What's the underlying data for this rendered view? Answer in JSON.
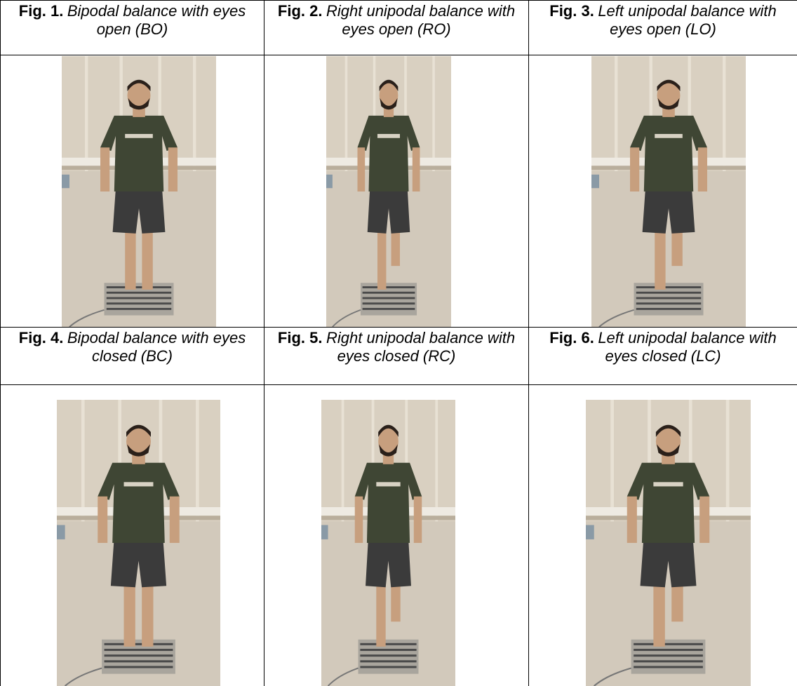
{
  "figures": [
    {
      "label": "Fig. 1.",
      "caption": "Bipodal balance with eyes open (BO)"
    },
    {
      "label": "Fig. 2.",
      "caption": "Right unipodal balance with eyes open (RO)"
    },
    {
      "label": "Fig. 3.",
      "caption": "Left unipodal balance with eyes open (LO)"
    },
    {
      "label": "Fig. 4.",
      "caption": "Bipodal balance with eyes closed (BC)"
    },
    {
      "label": "Fig. 5.",
      "caption": "Right unipodal balance with eyes closed (RC)"
    },
    {
      "label": "Fig. 6.",
      "caption": "Left unipodal balance with eyes closed (LC)"
    }
  ]
}
